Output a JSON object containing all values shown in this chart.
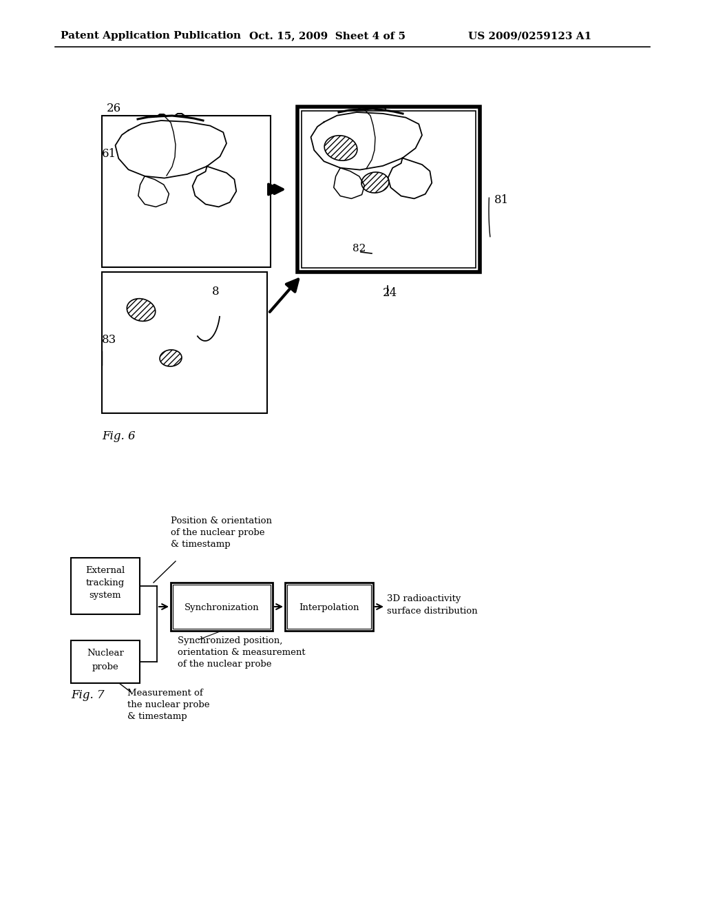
{
  "header_left": "Patent Application Publication",
  "header_center": "Oct. 15, 2009  Sheet 4 of 5",
  "header_right": "US 2009/0259123 A1",
  "fig6_label": "Fig. 6",
  "fig7_label": "Fig. 7",
  "background": "#ffffff"
}
